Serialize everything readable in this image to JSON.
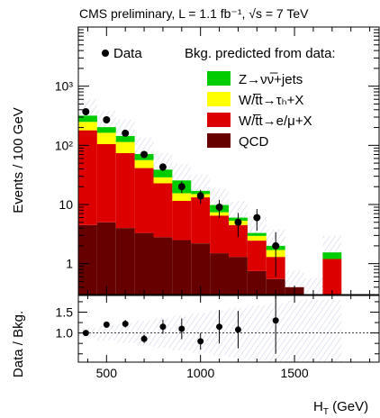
{
  "title": "CMS preliminary, L = 1.1 fb⁻¹, √s = 7 TeV",
  "legend": {
    "data_label": "Data",
    "bkg_header": "Bkg. predicted from data:",
    "entries": [
      {
        "name": "Z→νν̅+jets",
        "color": "#00cc00"
      },
      {
        "name": "W/t̅t→τₕ+X",
        "color": "#ffff00"
      },
      {
        "name": "W/t̅t→e/μ+X",
        "color": "#dd0000"
      },
      {
        "name": "QCD",
        "color": "#660000"
      }
    ]
  },
  "chart_data": [
    {
      "type": "bar",
      "stacked": true,
      "log_y": true,
      "xlabel": "H_T (GeV)",
      "ylabel": "Events / 100 GeV",
      "xlim": [
        350,
        1950
      ],
      "ylim": [
        0.3,
        10000
      ],
      "x_ticks": [
        500,
        1000,
        1500
      ],
      "y_ticks": [
        {
          "v": 1,
          "t": "1"
        },
        {
          "v": 10,
          "t": "10"
        },
        {
          "v": 100,
          "t": "10²"
        },
        {
          "v": 1000,
          "t": "10³"
        }
      ],
      "bin_edges": [
        350,
        450,
        550,
        650,
        750,
        850,
        950,
        1050,
        1150,
        1250,
        1350,
        1450,
        1550,
        1650,
        1750,
        1850,
        1950
      ],
      "series": [
        {
          "name": "QCD",
          "values": [
            4.5,
            5.0,
            4.0,
            3.3,
            2.8,
            2.5,
            2.2,
            1.5,
            1.3,
            0.75,
            0.55,
            0.4,
            0.3,
            0,
            0,
            0
          ]
        },
        {
          "name": "W/t̅t→e/μ+X",
          "values": [
            175,
            100,
            70,
            38,
            20,
            9,
            11,
            5,
            3.2,
            1.7,
            0.75,
            0,
            0,
            1.2,
            0,
            0
          ]
        },
        {
          "name": "W/t̅t→τₕ+X",
          "values": [
            70,
            58,
            40,
            15,
            6,
            4,
            1.8,
            0.9,
            0.8,
            0.5,
            0.4,
            0,
            0,
            0,
            0,
            0
          ]
        },
        {
          "name": "Z→νν̅+jets",
          "values": [
            68,
            40,
            30,
            15,
            10,
            10,
            2,
            2.4,
            0.7,
            0.35,
            0.3,
            0,
            0,
            0.35,
            0,
            0
          ]
        }
      ],
      "data_points": [
        {
          "x": 390,
          "y": 370,
          "err": 19
        },
        {
          "x": 500,
          "y": 270,
          "err": 16
        },
        {
          "x": 600,
          "y": 160,
          "err": 13
        },
        {
          "x": 700,
          "y": 70,
          "err": 8
        },
        {
          "x": 800,
          "y": 43,
          "err": 6.5
        },
        {
          "x": 900,
          "y": 20,
          "err": 4.5
        },
        {
          "x": 1000,
          "y": 14,
          "err": 3.7
        },
        {
          "x": 1100,
          "y": 9,
          "err": 3
        },
        {
          "x": 1200,
          "y": 5,
          "err": 2.2
        },
        {
          "x": 1300,
          "y": 6,
          "err": 2.4
        },
        {
          "x": 1400,
          "y": 2,
          "err": 1.4
        }
      ]
    },
    {
      "type": "scatter",
      "xlabel": "H_T (GeV)",
      "ylabel": "Data / Bkg.",
      "xlim": [
        350,
        1950
      ],
      "ylim": [
        0.3,
        1.9
      ],
      "x_ticks": [
        500,
        1000,
        1500
      ],
      "y_ticks": [
        {
          "v": 1.0,
          "t": "1.0"
        },
        {
          "v": 1.5,
          "t": "1.5"
        }
      ],
      "reference_line": 1,
      "points": [
        {
          "x": 390,
          "y": 1.0,
          "err": 0.05
        },
        {
          "x": 500,
          "y": 1.2,
          "err": 0.07
        },
        {
          "x": 600,
          "y": 1.22,
          "err": 0.09
        },
        {
          "x": 700,
          "y": 0.86,
          "err": 0.1
        },
        {
          "x": 800,
          "y": 1.15,
          "err": 0.17
        },
        {
          "x": 900,
          "y": 1.1,
          "err": 0.25
        },
        {
          "x": 1000,
          "y": 0.8,
          "err": 0.2
        },
        {
          "x": 1100,
          "y": 1.15,
          "err": 0.4
        },
        {
          "x": 1200,
          "y": 1.08,
          "err": 0.45
        },
        {
          "x": 1400,
          "y": 1.3,
          "err": 0.8
        }
      ]
    }
  ]
}
